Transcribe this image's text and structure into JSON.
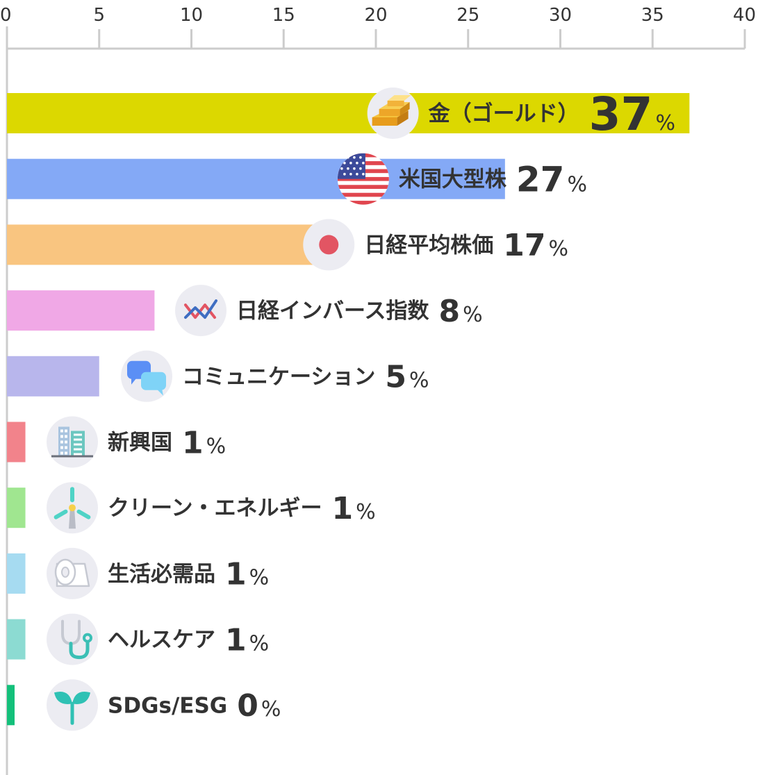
{
  "chart_data": {
    "type": "bar",
    "orientation": "horizontal",
    "xlim": [
      0,
      40
    ],
    "x_ticks": [
      "0",
      "5",
      "10",
      "15",
      "20",
      "25",
      "30",
      "35",
      "40"
    ],
    "grid": false,
    "unit_label": "%",
    "categories": [
      "金（ゴールド）",
      "米国大型株",
      "日経平均株価",
      "日経インバース指数",
      "コミュニケーション",
      "新興国",
      "クリーン・エネルギー",
      "生活必需品",
      "ヘルスケア",
      "SDGs/ESG"
    ],
    "values": [
      37,
      27,
      17,
      8,
      5,
      1,
      1,
      1,
      1,
      0
    ],
    "value_labels": [
      "37",
      "27",
      "17",
      "8",
      "5",
      "1",
      "1",
      "1",
      "1",
      "0"
    ],
    "colors": [
      "#dcd800",
      "#84a9f6",
      "#f9c580",
      "#f0a8e6",
      "#b8b6ec",
      "#f2838b",
      "#a0e690",
      "#a6dbf1",
      "#8cdbd2",
      "#13c07a"
    ],
    "icons": [
      "gold-bars-icon",
      "us-flag-icon",
      "japan-flag-icon",
      "inverse-chart-icon",
      "chat-bubbles-icon",
      "buildings-icon",
      "wind-turbine-icon",
      "toilet-paper-icon",
      "stethoscope-icon",
      "sprout-icon"
    ]
  }
}
